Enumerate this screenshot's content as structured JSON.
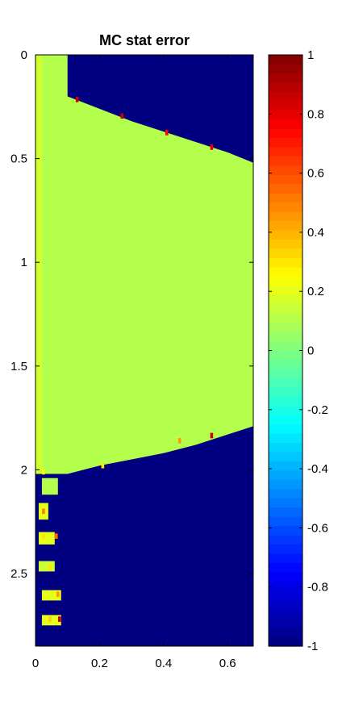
{
  "chart_data": {
    "type": "heatmap",
    "title": "MC stat error",
    "xlabel": "",
    "ylabel": "",
    "x_range": [
      0,
      0.68
    ],
    "y_range": [
      0,
      2.85
    ],
    "y_reversed": true,
    "x_ticks": [
      "0",
      "0.2",
      "0.4",
      "0.6"
    ],
    "x_tick_values": [
      0,
      0.2,
      0.4,
      0.6
    ],
    "y_ticks": [
      "0",
      "0.5",
      "1",
      "1.5",
      "2",
      "2.5"
    ],
    "y_tick_values": [
      0,
      0.5,
      1,
      1.5,
      2,
      2.5
    ],
    "colormap": "jet",
    "color_range": [
      -1,
      1
    ],
    "colorbar_ticks": [
      "1",
      "0.8",
      "0.6",
      "0.4",
      "0.2",
      "0",
      "-0.2",
      "-0.4",
      "-0.6",
      "-0.8",
      "-1"
    ],
    "colorbar_tick_values": [
      1,
      0.8,
      0.6,
      0.4,
      0.2,
      0,
      -0.2,
      -0.4,
      -0.6,
      -0.8,
      -1
    ],
    "background_value": -1,
    "region_value": 0.1,
    "region_boundary": {
      "strip_top": {
        "x_max": 0.1,
        "y_min": 0,
        "y_max": 0.2
      },
      "left_edge_x": 0.02,
      "x_right": [
        0.1,
        0.2,
        0.3,
        0.4,
        0.5,
        0.6,
        0.68
      ],
      "y_top": [
        0.2,
        0.26,
        0.32,
        0.37,
        0.42,
        0.47,
        0.52
      ],
      "y_bottom": [
        2.02,
        1.98,
        1.95,
        1.92,
        1.88,
        1.83,
        1.79
      ]
    },
    "hot_cells": [
      {
        "x": 0.13,
        "y": 0.215,
        "v": 0.85
      },
      {
        "x": 0.27,
        "y": 0.295,
        "v": 0.85
      },
      {
        "x": 0.41,
        "y": 0.375,
        "v": 0.75
      },
      {
        "x": 0.55,
        "y": 0.445,
        "v": 0.8
      },
      {
        "x": 0.55,
        "y": 1.835,
        "v": 0.85
      },
      {
        "x": 0.45,
        "y": 1.86,
        "v": 0.45
      },
      {
        "x": 0.21,
        "y": 1.98,
        "v": 0.3
      },
      {
        "x": 0.025,
        "y": 2.01,
        "v": 0.25
      },
      {
        "x": 0.025,
        "y": 2.2,
        "v": 0.5
      },
      {
        "x": 0.025,
        "y": 2.32,
        "v": 0.3
      },
      {
        "x": 0.065,
        "y": 2.32,
        "v": 0.55
      },
      {
        "x": 0.045,
        "y": 2.47,
        "v": 0.3
      },
      {
        "x": 0.07,
        "y": 2.6,
        "v": 0.45
      },
      {
        "x": 0.045,
        "y": 2.72,
        "v": 0.35
      },
      {
        "x": 0.075,
        "y": 2.72,
        "v": 0.85
      }
    ],
    "lower_islands": [
      {
        "x0": 0.02,
        "x1": 0.07,
        "y0": 2.04,
        "y1": 2.12,
        "v": 0.1
      },
      {
        "x0": 0.01,
        "x1": 0.04,
        "y0": 2.16,
        "y1": 2.24,
        "v": 0.2
      },
      {
        "x0": 0.01,
        "x1": 0.06,
        "y0": 2.3,
        "y1": 2.36,
        "v": 0.2
      },
      {
        "x0": 0.01,
        "x1": 0.06,
        "y0": 2.44,
        "y1": 2.49,
        "v": 0.15
      },
      {
        "x0": 0.02,
        "x1": 0.08,
        "y0": 2.58,
        "y1": 2.63,
        "v": 0.2
      },
      {
        "x0": 0.02,
        "x1": 0.08,
        "y0": 2.7,
        "y1": 2.75,
        "v": 0.2
      }
    ],
    "grid": false,
    "colorbar_placement": "right"
  }
}
